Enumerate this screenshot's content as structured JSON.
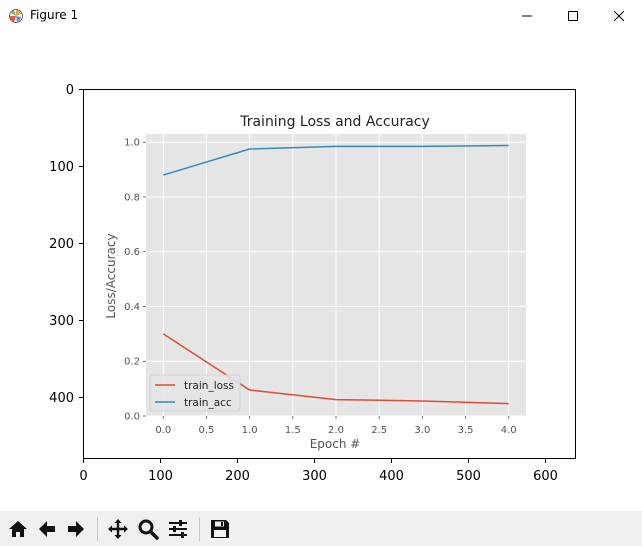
{
  "window": {
    "title": "Figure 1",
    "app_icon": "matplotlib-icon"
  },
  "window_controls": [
    "minimize-icon",
    "maximize-icon",
    "close-icon"
  ],
  "outer_axes": {
    "x_ticks": [
      "0",
      "100",
      "200",
      "300",
      "400",
      "500",
      "600"
    ],
    "y_ticks": [
      "0",
      "100",
      "200",
      "300",
      "400"
    ]
  },
  "chart_data": {
    "type": "line",
    "title": "Training Loss and Accuracy",
    "xlabel": "Epoch #",
    "ylabel": "Loss/Accuracy",
    "x": [
      0,
      1,
      2,
      3,
      4
    ],
    "x_ticks": [
      "0.0",
      "0.5",
      "1.0",
      "1.5",
      "2.0",
      "2.5",
      "3.0",
      "3.5",
      "4.0"
    ],
    "y_ticks": [
      "0.0",
      "0.2",
      "0.4",
      "0.6",
      "0.8",
      "1.0"
    ],
    "xlim": [
      -0.2,
      4.2
    ],
    "ylim": [
      0.0,
      1.03
    ],
    "grid": true,
    "legend_position": "lower-left",
    "series": [
      {
        "name": "train_loss",
        "color": "#e24a33",
        "values": [
          0.3,
          0.095,
          0.06,
          0.055,
          0.045
        ]
      },
      {
        "name": "train_acc",
        "color": "#348abd",
        "values": [
          0.88,
          0.975,
          0.985,
          0.985,
          0.988
        ]
      }
    ]
  },
  "toolbar": {
    "buttons": [
      "home-icon",
      "back-icon",
      "forward-icon",
      "pan-icon",
      "zoom-icon",
      "configure-subplots-icon",
      "save-icon"
    ]
  }
}
